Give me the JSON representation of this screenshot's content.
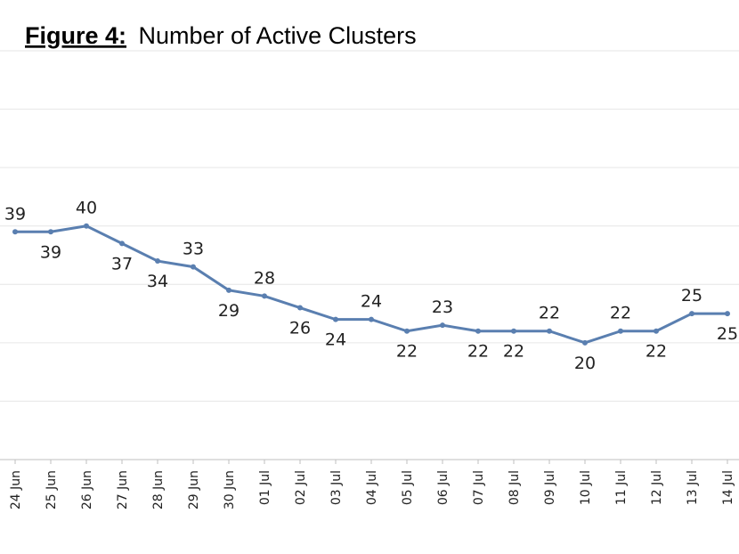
{
  "chart_data": {
    "type": "line",
    "title_prefix": "Figure 4:",
    "title": "Number of Active Clusters",
    "categories": [
      "24 Jun",
      "25 Jun",
      "26 Jun",
      "27 Jun",
      "28 Jun",
      "29 Jun",
      "30 Jun",
      "01 Jul",
      "02 Jul",
      "03 Jul",
      "04 Jul",
      "05 Jul",
      "06 Jul",
      "07 Jul",
      "08 Jul",
      "09 Jul",
      "10 Jul",
      "11 Jul",
      "12 Jul",
      "13 Jul",
      "14 Jul"
    ],
    "values": [
      39,
      39,
      40,
      37,
      34,
      33,
      29,
      28,
      26,
      24,
      24,
      22,
      23,
      22,
      22,
      22,
      20,
      22,
      22,
      25,
      25
    ],
    "color": "#5a7fb0",
    "ylim": [
      0,
      70
    ],
    "yticks": [
      0,
      10,
      20,
      30,
      40,
      50,
      60,
      70
    ],
    "grid": true
  }
}
